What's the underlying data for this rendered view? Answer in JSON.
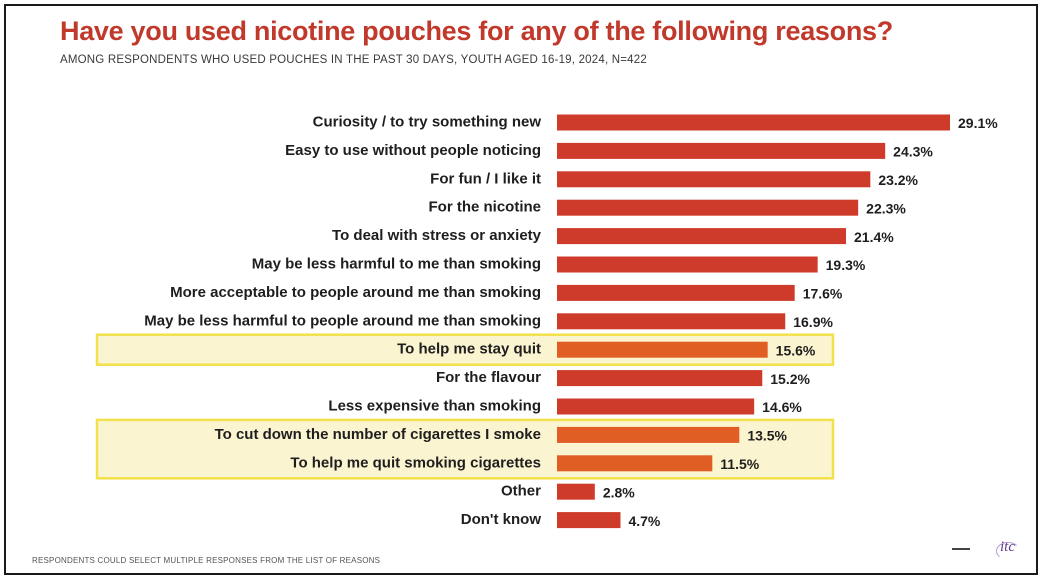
{
  "title": "Have you used nicotine pouches for any of the following reasons?",
  "subtitle": "AMONG RESPONDENTS WHO USED POUCHES IN THE PAST 30 DAYS, YOUTH AGED 16-19, 2024, N=422",
  "footnote": "RESPONDENTS COULD SELECT MULTIPLE RESPONSES FROM THE LIST OF REASONS",
  "logo_text": "itc",
  "colors": {
    "title": "#c0392b",
    "bar": "#cf3b2b",
    "bar_highlighted": "#e05e24",
    "highlight_fill": "#fbf4d0",
    "highlight_border": "#f2e14a"
  },
  "chart_data": {
    "type": "bar",
    "orientation": "horizontal",
    "title": "Have you used nicotine pouches for any of the following reasons?",
    "subtitle": "AMONG RESPONDENTS WHO USED POUCHES IN THE PAST 30 DAYS, YOUTH AGED 16-19, 2024, N=422",
    "xlabel": "",
    "ylabel": "",
    "xlim": [
      0,
      30
    ],
    "grid": false,
    "legend": "none",
    "categories": [
      "Curiosity / to try something new",
      "Easy to use without people noticing",
      "For fun / I like it",
      "For the nicotine",
      "To deal with stress or anxiety",
      "May be less harmful to me than smoking",
      "More acceptable to people around me than smoking",
      "May be less harmful to people around me than smoking",
      "To help me stay quit",
      "For the flavour",
      "Less expensive than smoking",
      "To cut down the number of cigarettes I smoke",
      "To help me quit smoking cigarettes",
      "Other",
      "Don't know"
    ],
    "values": [
      29.1,
      24.3,
      23.2,
      22.3,
      21.4,
      19.3,
      17.6,
      16.9,
      15.6,
      15.2,
      14.6,
      13.5,
      11.5,
      2.8,
      4.7
    ],
    "value_labels": [
      "29.1%",
      "24.3%",
      "23.2%",
      "22.3%",
      "21.4%",
      "19.3%",
      "17.6%",
      "16.9%",
      "15.6%",
      "15.2%",
      "14.6%",
      "13.5%",
      "11.5%",
      "2.8%",
      "4.7%"
    ],
    "highlighted_groups": [
      [
        8
      ],
      [
        11,
        12
      ]
    ]
  }
}
